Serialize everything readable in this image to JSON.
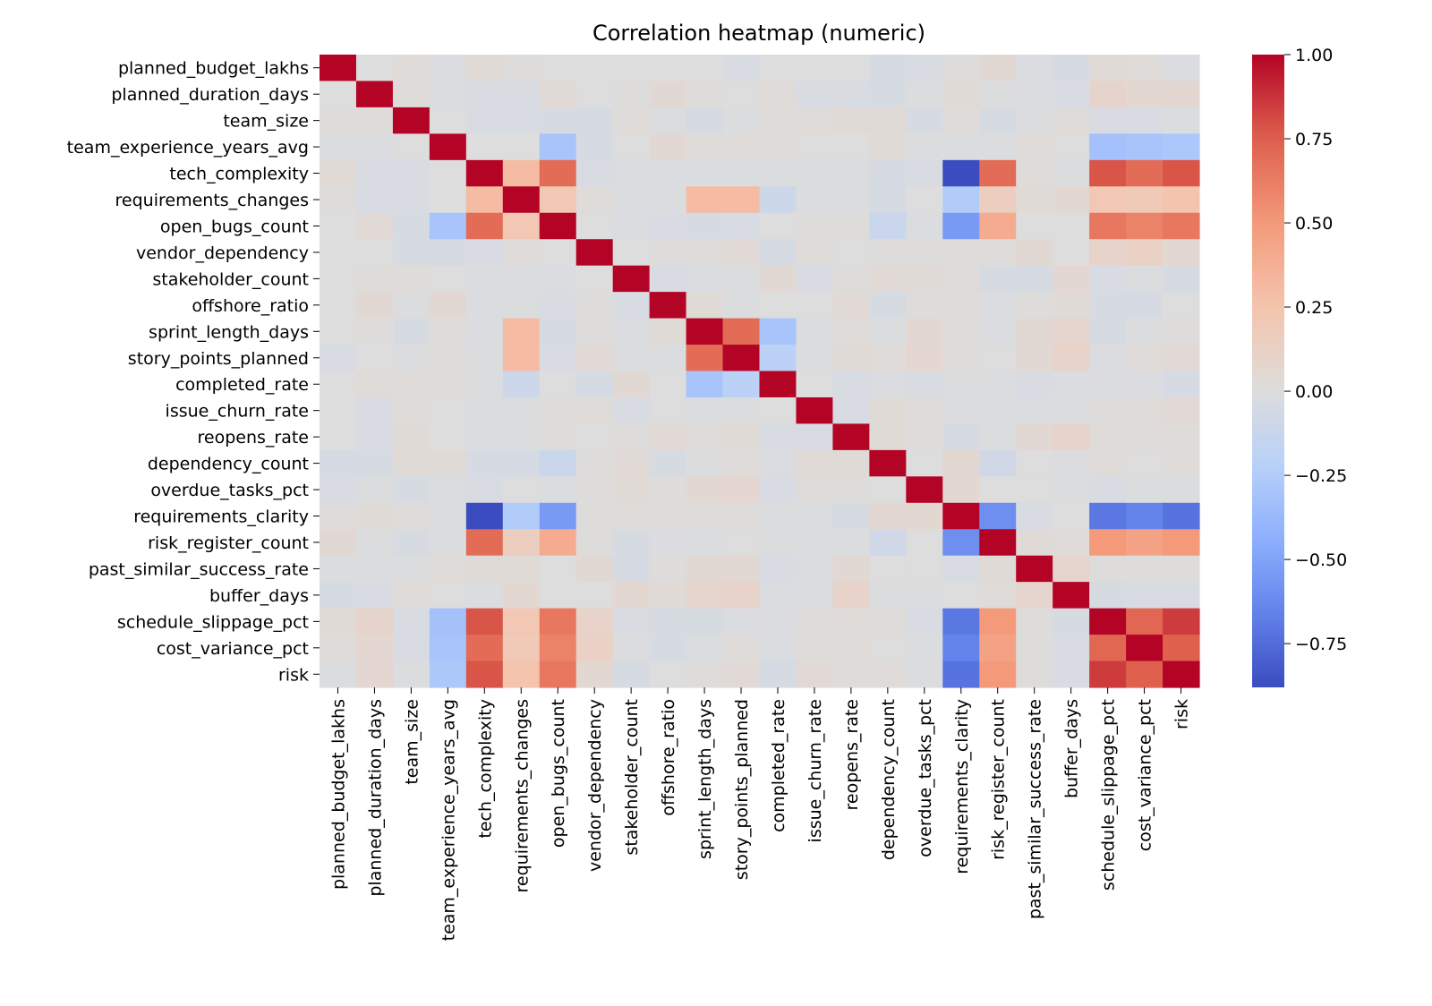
{
  "chart_data": {
    "type": "heatmap",
    "title": "Correlation heatmap (numeric)",
    "xlabel": "",
    "ylabel": "",
    "variables": [
      "planned_budget_lakhs",
      "planned_duration_days",
      "team_size",
      "team_experience_years_avg",
      "tech_complexity",
      "requirements_changes",
      "open_bugs_count",
      "vendor_dependency",
      "stakeholder_count",
      "offshore_ratio",
      "sprint_length_days",
      "story_points_planned",
      "completed_rate",
      "issue_churn_rate",
      "reopens_rate",
      "dependency_count",
      "overdue_tasks_pct",
      "requirements_clarity",
      "risk_register_count",
      "past_similar_success_rate",
      "buffer_days",
      "schedule_slippage_pct",
      "cost_variance_pct",
      "risk"
    ],
    "values": [
      [
        1.0,
        0.0,
        0.02,
        -0.02,
        0.03,
        0.01,
        0.0,
        0.0,
        0.0,
        0.0,
        0.0,
        -0.03,
        0.0,
        0.0,
        0.0,
        -0.05,
        -0.03,
        0.01,
        0.05,
        -0.02,
        -0.04,
        0.03,
        0.02,
        -0.02
      ],
      [
        0.0,
        1.0,
        0.02,
        -0.02,
        -0.03,
        -0.03,
        0.04,
        0.0,
        0.01,
        0.05,
        0.01,
        0.0,
        0.02,
        -0.03,
        -0.03,
        -0.04,
        -0.01,
        0.03,
        -0.01,
        -0.02,
        -0.03,
        0.09,
        0.07,
        0.07
      ],
      [
        0.02,
        0.02,
        1.0,
        0.0,
        -0.03,
        -0.03,
        -0.04,
        -0.04,
        0.02,
        -0.01,
        -0.04,
        -0.01,
        0.02,
        0.02,
        0.03,
        0.03,
        -0.04,
        0.02,
        -0.04,
        -0.01,
        0.02,
        -0.03,
        -0.03,
        -0.01
      ],
      [
        -0.02,
        -0.02,
        0.0,
        1.0,
        0.0,
        0.0,
        -0.3,
        -0.05,
        0.0,
        0.05,
        0.02,
        0.02,
        0.01,
        0.0,
        0.0,
        0.03,
        -0.01,
        -0.01,
        -0.01,
        0.02,
        0.0,
        -0.32,
        -0.3,
        -0.28
      ],
      [
        0.03,
        -0.03,
        -0.03,
        0.0,
        1.0,
        0.3,
        0.7,
        -0.03,
        -0.02,
        -0.02,
        -0.02,
        -0.01,
        -0.01,
        -0.01,
        -0.01,
        -0.05,
        -0.03,
        -0.88,
        0.7,
        0.02,
        -0.01,
        0.78,
        0.7,
        0.78
      ],
      [
        0.01,
        -0.03,
        -0.03,
        0.0,
        0.3,
        1.0,
        0.22,
        0.02,
        -0.02,
        -0.01,
        0.3,
        0.3,
        -0.1,
        -0.01,
        -0.01,
        -0.05,
        0.0,
        -0.25,
        0.15,
        0.03,
        0.06,
        0.22,
        0.2,
        0.25
      ],
      [
        0.0,
        0.04,
        -0.04,
        -0.3,
        0.7,
        0.22,
        1.0,
        0.0,
        -0.02,
        -0.03,
        -0.04,
        -0.03,
        0.0,
        0.01,
        0.01,
        -0.12,
        -0.02,
        -0.55,
        0.4,
        0.0,
        0.0,
        0.65,
        0.6,
        0.65
      ],
      [
        0.0,
        0.0,
        -0.04,
        -0.05,
        -0.03,
        0.02,
        0.0,
        1.0,
        0.0,
        0.01,
        0.01,
        0.04,
        -0.05,
        0.02,
        0.0,
        0.01,
        0.01,
        0.01,
        0.01,
        0.05,
        0.0,
        0.1,
        0.12,
        0.06
      ],
      [
        0.0,
        0.01,
        0.02,
        0.0,
        -0.02,
        -0.02,
        -0.02,
        0.0,
        1.0,
        -0.03,
        -0.02,
        -0.01,
        0.05,
        -0.03,
        0.01,
        0.04,
        0.03,
        0.02,
        -0.04,
        -0.05,
        0.06,
        -0.03,
        -0.01,
        -0.04
      ],
      [
        0.0,
        0.05,
        -0.01,
        0.05,
        -0.02,
        -0.01,
        -0.03,
        0.01,
        -0.03,
        1.0,
        0.03,
        -0.01,
        0.0,
        0.0,
        0.04,
        -0.04,
        0.01,
        0.02,
        -0.02,
        0.01,
        0.03,
        -0.04,
        -0.05,
        0.0
      ],
      [
        0.0,
        0.01,
        -0.04,
        0.02,
        -0.02,
        0.3,
        -0.04,
        0.01,
        -0.02,
        0.03,
        1.0,
        0.7,
        -0.3,
        -0.01,
        0.02,
        -0.01,
        0.06,
        0.01,
        -0.02,
        0.05,
        0.08,
        -0.04,
        -0.01,
        0.01
      ],
      [
        -0.03,
        0.0,
        -0.01,
        0.02,
        -0.01,
        0.3,
        -0.03,
        0.04,
        -0.01,
        -0.01,
        0.7,
        1.0,
        -0.2,
        -0.01,
        0.03,
        0.02,
        0.07,
        0.01,
        0.0,
        0.05,
        0.1,
        -0.02,
        0.02,
        0.04
      ],
      [
        0.0,
        0.02,
        0.02,
        0.01,
        -0.01,
        -0.1,
        0.0,
        -0.05,
        0.05,
        0.0,
        -0.3,
        -0.2,
        1.0,
        0.0,
        -0.03,
        -0.02,
        -0.03,
        -0.01,
        -0.01,
        -0.03,
        -0.02,
        -0.02,
        -0.02,
        -0.05
      ],
      [
        0.0,
        -0.03,
        0.02,
        0.0,
        -0.01,
        -0.01,
        0.01,
        0.02,
        -0.03,
        0.0,
        -0.01,
        -0.01,
        0.0,
        1.0,
        -0.03,
        0.03,
        0.01,
        -0.01,
        -0.01,
        -0.02,
        -0.01,
        0.01,
        0.02,
        0.04
      ],
      [
        0.0,
        -0.03,
        0.03,
        0.0,
        -0.01,
        -0.01,
        0.01,
        0.0,
        0.01,
        0.04,
        0.02,
        0.03,
        -0.03,
        -0.03,
        1.0,
        0.03,
        0.01,
        -0.04,
        -0.01,
        0.05,
        0.1,
        0.02,
        0.02,
        0.02
      ],
      [
        -0.05,
        -0.04,
        0.03,
        0.03,
        -0.05,
        -0.05,
        -0.12,
        0.01,
        0.04,
        -0.04,
        -0.01,
        0.02,
        -0.02,
        0.03,
        0.03,
        1.0,
        0.0,
        0.06,
        -0.08,
        0.0,
        -0.01,
        0.02,
        0.0,
        0.02
      ],
      [
        -0.03,
        -0.01,
        -0.04,
        -0.01,
        -0.03,
        0.0,
        -0.02,
        0.01,
        0.03,
        0.01,
        0.06,
        0.07,
        -0.03,
        0.01,
        0.01,
        0.0,
        1.0,
        0.06,
        0.0,
        0.0,
        -0.01,
        -0.03,
        -0.01,
        -0.01
      ],
      [
        0.01,
        0.03,
        0.02,
        -0.01,
        -0.88,
        -0.25,
        -0.55,
        0.01,
        0.02,
        0.02,
        0.01,
        0.01,
        -0.01,
        -0.01,
        -0.04,
        0.06,
        0.06,
        1.0,
        -0.6,
        -0.03,
        0.0,
        -0.7,
        -0.65,
        -0.72
      ],
      [
        0.05,
        -0.01,
        -0.04,
        -0.01,
        0.7,
        0.15,
        0.4,
        0.01,
        -0.04,
        -0.02,
        -0.02,
        0.0,
        -0.01,
        -0.01,
        -0.01,
        -0.08,
        0.0,
        -0.6,
        1.0,
        0.03,
        0.02,
        0.5,
        0.45,
        0.5
      ],
      [
        -0.02,
        -0.02,
        -0.01,
        0.02,
        0.03,
        0.03,
        0.0,
        0.05,
        -0.05,
        0.01,
        0.05,
        0.05,
        -0.03,
        -0.02,
        0.05,
        0.0,
        0.0,
        -0.03,
        0.03,
        1.0,
        0.08,
        0.01,
        0.01,
        0.01
      ],
      [
        -0.04,
        -0.03,
        0.02,
        0.0,
        -0.01,
        0.06,
        0.0,
        0.0,
        0.06,
        0.03,
        0.08,
        0.1,
        -0.02,
        -0.01,
        0.1,
        -0.01,
        -0.01,
        0.0,
        0.02,
        0.08,
        1.0,
        -0.04,
        -0.03,
        -0.03
      ],
      [
        0.03,
        0.09,
        -0.03,
        -0.32,
        0.78,
        0.22,
        0.65,
        0.1,
        -0.03,
        -0.04,
        -0.04,
        -0.02,
        -0.02,
        0.01,
        0.02,
        0.02,
        -0.03,
        -0.7,
        0.5,
        0.01,
        -0.04,
        1.0,
        0.72,
        0.85
      ],
      [
        0.02,
        0.07,
        -0.03,
        -0.3,
        0.7,
        0.2,
        0.6,
        0.12,
        -0.01,
        -0.05,
        -0.01,
        0.02,
        -0.02,
        0.02,
        0.02,
        0.0,
        -0.01,
        -0.65,
        0.45,
        0.01,
        -0.03,
        0.72,
        1.0,
        0.75
      ],
      [
        -0.02,
        0.07,
        -0.01,
        -0.28,
        0.78,
        0.25,
        0.65,
        0.06,
        -0.04,
        0.0,
        0.01,
        0.04,
        -0.05,
        0.04,
        0.02,
        0.02,
        -0.01,
        -0.72,
        0.5,
        0.01,
        -0.03,
        0.85,
        0.75,
        1.0
      ]
    ],
    "vmin": -0.88,
    "vmax": 1.0,
    "colormap": "coolwarm",
    "colorbar_ticks": [
      {
        "value": 1.0,
        "label": "1.00"
      },
      {
        "value": 0.75,
        "label": "0.75"
      },
      {
        "value": 0.5,
        "label": "0.50"
      },
      {
        "value": 0.25,
        "label": "0.25"
      },
      {
        "value": 0.0,
        "label": "0.00"
      },
      {
        "value": -0.25,
        "label": "−0.25"
      },
      {
        "value": -0.5,
        "label": "−0.50"
      },
      {
        "value": -0.75,
        "label": "−0.75"
      }
    ],
    "grid": false
  }
}
